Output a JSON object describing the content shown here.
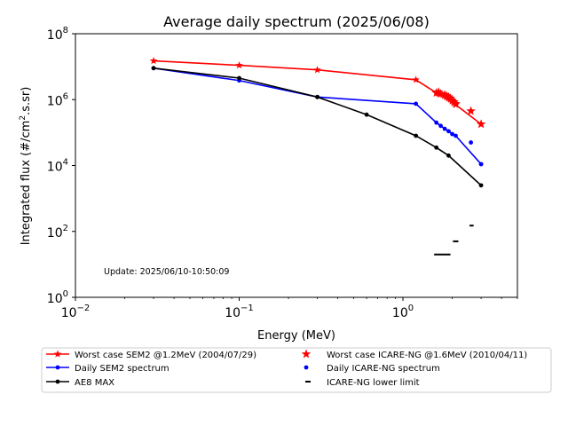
{
  "chart_data": {
    "type": "scatter",
    "title": "Average daily spectrum (2025/06/08)",
    "xlabel": "Energy (MeV)",
    "ylabel": "Integrated flux (#/cm².s.sr)",
    "xscale": "log",
    "yscale": "log",
    "xlim": [
      0.01,
      5
    ],
    "ylim": [
      1,
      100000000
    ],
    "x_ticks": [
      {
        "base": "10",
        "exp": "−2",
        "value": 0.01
      },
      {
        "base": "10",
        "exp": "−1",
        "value": 0.1
      },
      {
        "base": "10",
        "exp": "0",
        "value": 1
      }
    ],
    "y_ticks": [
      {
        "base": "10",
        "exp": "0",
        "value": 1
      },
      {
        "base": "10",
        "exp": "2",
        "value": 100
      },
      {
        "base": "10",
        "exp": "4",
        "value": 10000
      },
      {
        "base": "10",
        "exp": "6",
        "value": 1000000
      },
      {
        "base": "10",
        "exp": "8",
        "value": 100000000
      }
    ],
    "grid": false,
    "legend_position": "bottom",
    "annotation": "Update: 2025/06/10-10:50:09",
    "series": [
      {
        "name": "Worst case SEM2 @1.2MeV (2004/07/29)",
        "style": "line",
        "marker": "star",
        "color": "#ff0000",
        "x": [
          0.03,
          0.1,
          0.3,
          1.2,
          1.6,
          1.65,
          1.7,
          1.75,
          1.8,
          1.85,
          1.9,
          1.95,
          2.0,
          2.05,
          2.1,
          3.0
        ],
        "y": [
          15000000,
          11000000,
          8000000,
          4000000,
          1600000,
          1500000,
          1450000,
          1400000,
          1300000,
          1200000,
          1100000,
          1000000,
          900000,
          800000,
          700000,
          180000
        ]
      },
      {
        "name": "Daily SEM2 spectrum",
        "style": "line",
        "marker": "dot",
        "color": "#0000ff",
        "x": [
          0.03,
          0.1,
          0.3,
          1.2,
          1.6,
          1.7,
          1.8,
          1.9,
          2.0,
          2.1,
          3.0
        ],
        "y": [
          9000000,
          3800000,
          1200000,
          750000,
          200000,
          160000,
          130000,
          110000,
          90000,
          80000,
          11000
        ]
      },
      {
        "name": "AE8 MAX",
        "style": "line",
        "marker": "dot",
        "color": "#000000",
        "x": [
          0.03,
          0.1,
          0.3,
          0.6,
          1.2,
          1.6,
          1.9,
          3.0
        ],
        "y": [
          9000000,
          4500000,
          1200000,
          350000,
          80000,
          35000,
          20000,
          2500
        ]
      },
      {
        "name": "Worst case ICARE-NG @1.6MeV (2010/04/11)",
        "style": "scatter",
        "marker": "star",
        "color": "#ff0000",
        "x": [
          1.6,
          1.65,
          1.7,
          1.8,
          1.85,
          1.9,
          1.95,
          2.0,
          2.05,
          2.1,
          2.6,
          3.0
        ],
        "y": [
          1600000,
          1700000,
          1500000,
          1400000,
          1300000,
          1200000,
          1100000,
          950000,
          850000,
          750000,
          450000,
          180000
        ]
      },
      {
        "name": "Daily ICARE-NG spectrum",
        "style": "scatter",
        "marker": "dot",
        "color": "#0000ff",
        "x": [
          2.6,
          3.0
        ],
        "y": [
          50000,
          11000
        ]
      },
      {
        "name": "ICARE-NG lower limit",
        "style": "segments",
        "marker": "dash",
        "color": "#000000",
        "segments": [
          {
            "x": [
              1.55,
              1.95
            ],
            "y": 20
          },
          {
            "x": [
              2.02,
              2.18
            ],
            "y": 50
          },
          {
            "x": [
              2.55,
              2.7
            ],
            "y": 150
          }
        ]
      }
    ]
  }
}
